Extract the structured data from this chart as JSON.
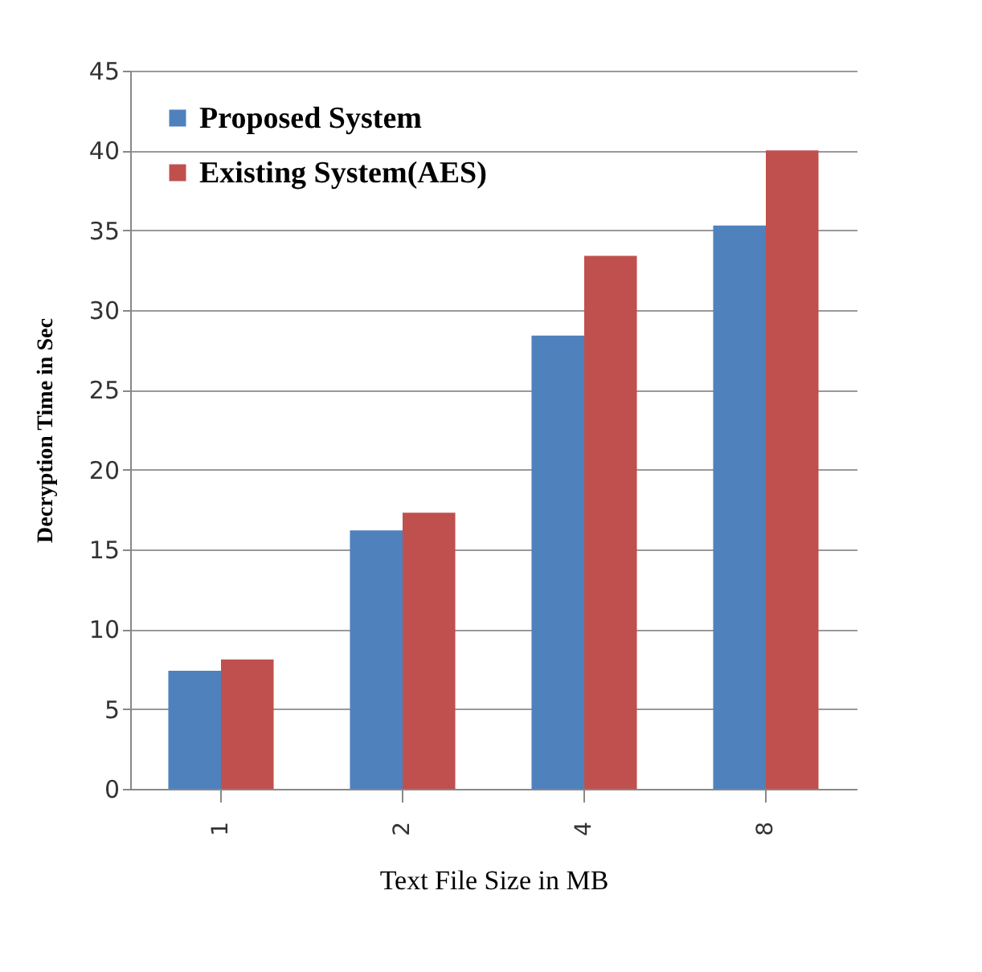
{
  "chart_data": {
    "type": "bar",
    "xlabel": "Text File Size in MB",
    "ylabel": "Decryption Time in Sec",
    "categories": [
      "1",
      "2",
      "4",
      "8"
    ],
    "series": [
      {
        "name": "Proposed System",
        "color": "#4f81bd",
        "values": [
          7.4,
          16.2,
          28.4,
          35.3
        ]
      },
      {
        "name": "Existing System(AES)",
        "color": "#c0504d",
        "values": [
          8.1,
          17.3,
          33.4,
          40.0
        ]
      }
    ],
    "ylim": [
      0,
      45
    ],
    "yticks": [
      0,
      5,
      10,
      15,
      20,
      25,
      30,
      35,
      40,
      45
    ],
    "grid": "y",
    "legend": "top left"
  }
}
